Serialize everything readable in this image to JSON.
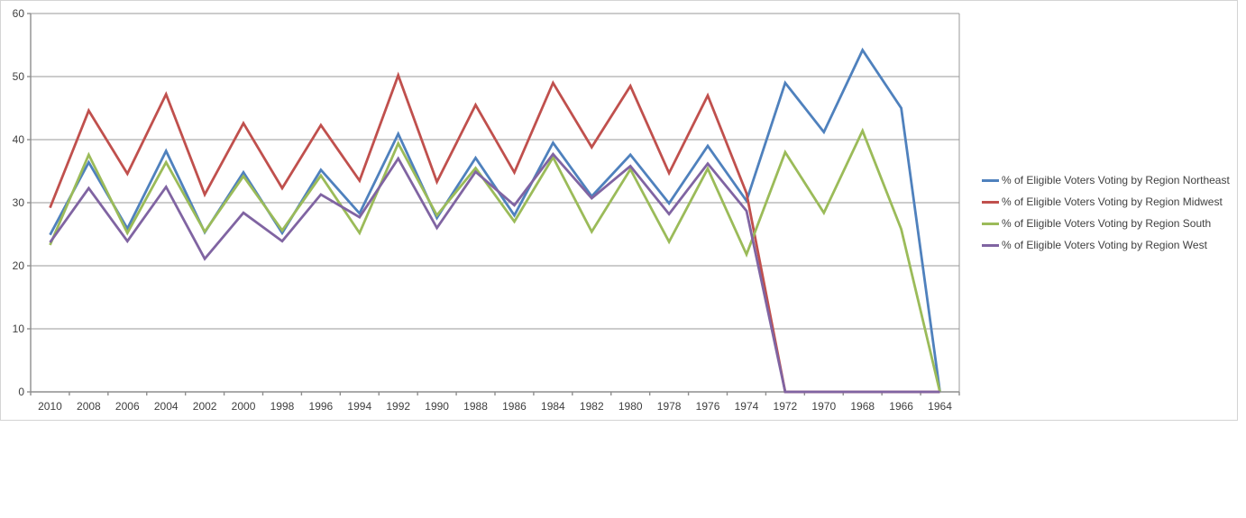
{
  "chart_data": {
    "type": "line",
    "title": "",
    "xlabel": "",
    "ylabel": "",
    "ylim": [
      0,
      60
    ],
    "y_ticks": [
      0,
      10,
      20,
      30,
      40,
      50,
      60
    ],
    "grid": true,
    "legend_position": "right",
    "categories": [
      "2010",
      "2008",
      "2006",
      "2004",
      "2002",
      "2000",
      "1998",
      "1996",
      "1994",
      "1992",
      "1990",
      "1988",
      "1986",
      "1984",
      "1982",
      "1980",
      "1978",
      "1976",
      "1974",
      "1972",
      "1970",
      "1968",
      "1966",
      "1964"
    ],
    "series": [
      {
        "name": "% of Eligible Voters Voting by Region Northeast",
        "color": "#4F81BD",
        "values": [
          24.9,
          36.4,
          25.9,
          38.2,
          25.3,
          34.8,
          25.2,
          35.2,
          28.3,
          40.9,
          27.6,
          37.1,
          28.0,
          39.5,
          31.0,
          37.6,
          29.9,
          39.0,
          30.3,
          49.0,
          41.2,
          54.2,
          45.0,
          0
        ]
      },
      {
        "name": "% of Eligible Voters Voting by Region Midwest",
        "color": "#C0504D",
        "values": [
          29.2,
          44.6,
          34.6,
          47.2,
          31.3,
          42.6,
          32.3,
          42.3,
          33.5,
          50.2,
          33.3,
          45.5,
          34.8,
          49.0,
          38.8,
          48.5,
          34.7,
          47.0,
          31.5,
          0,
          0,
          0,
          0,
          0
        ]
      },
      {
        "name": "% of Eligible Voters Voting by Region South",
        "color": "#9BBB59",
        "values": [
          23.3,
          37.6,
          25.2,
          36.4,
          25.4,
          34.2,
          25.6,
          34.3,
          25.2,
          39.4,
          28.0,
          35.5,
          27.0,
          37.2,
          25.4,
          35.3,
          23.8,
          35.4,
          21.8,
          38.0,
          28.4,
          41.4,
          25.8,
          0
        ]
      },
      {
        "name": "% of Eligible Voters Voting by Region West",
        "color": "#8064A2",
        "values": [
          23.7,
          32.3,
          23.9,
          32.5,
          21.1,
          28.4,
          23.9,
          31.3,
          27.7,
          37.0,
          26.0,
          34.9,
          29.6,
          37.7,
          30.7,
          35.8,
          28.2,
          36.2,
          28.7,
          0,
          0,
          0,
          0,
          0
        ]
      }
    ],
    "colors": {
      "gridline": "#9a9a9a",
      "axis": "#8e8e8e",
      "frame_border": "#d4d4d4",
      "text": "#3f3f3f",
      "background": "#ffffff"
    }
  }
}
